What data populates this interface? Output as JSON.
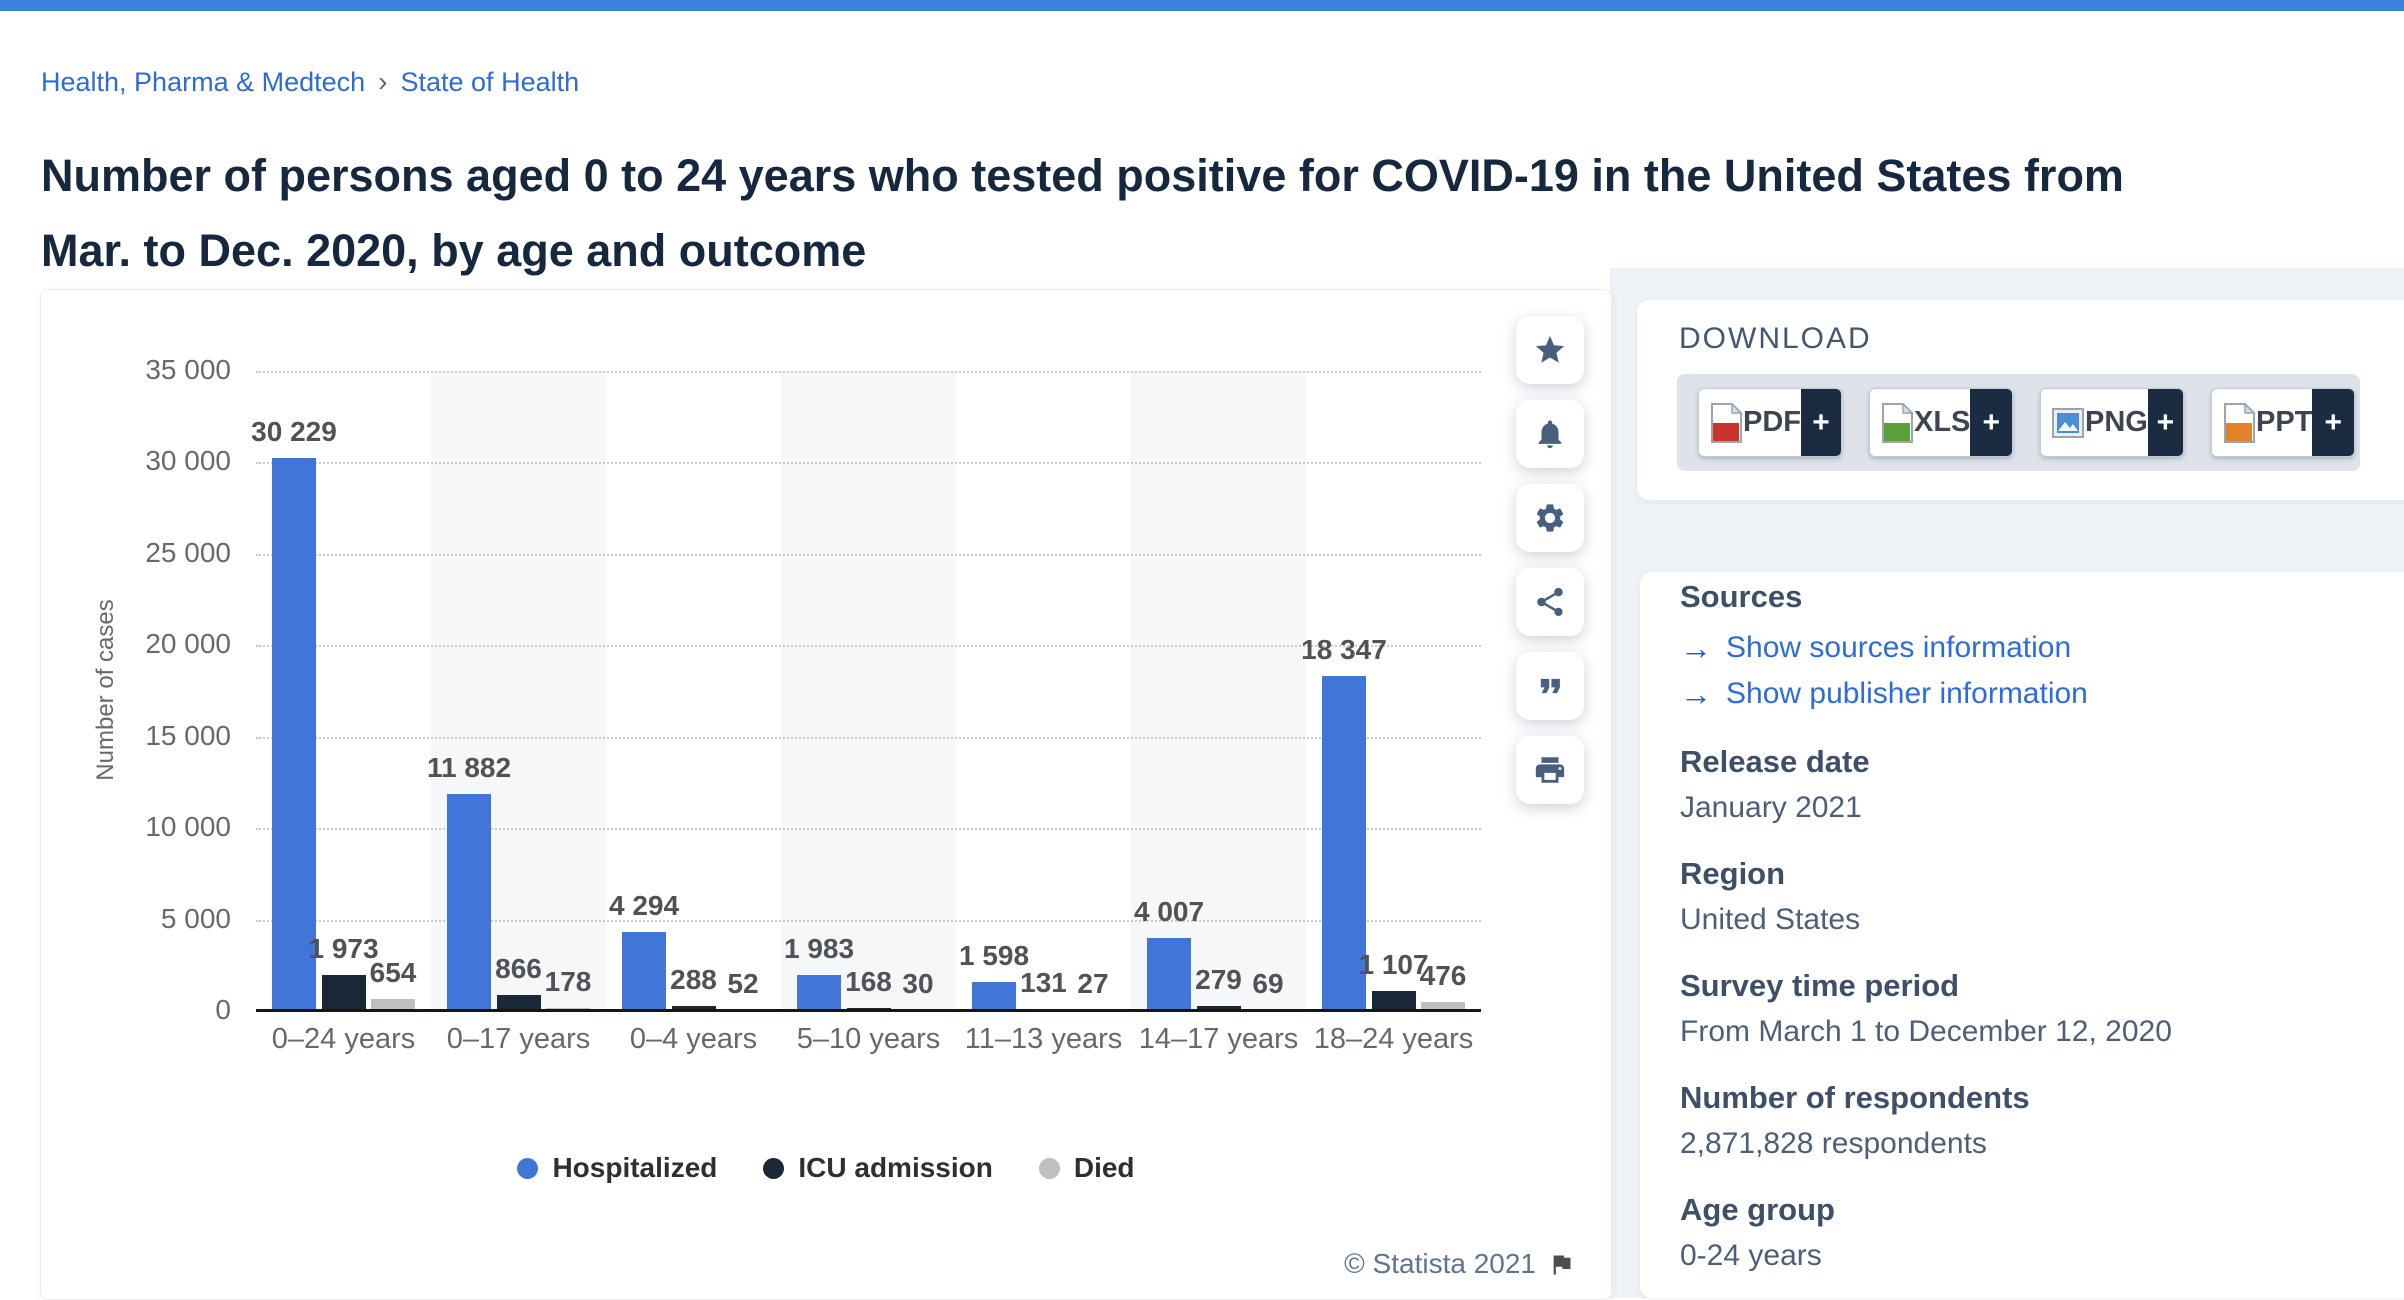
{
  "topbar": {
    "color": "#3a82dc"
  },
  "breadcrumb": {
    "items": [
      "Health, Pharma & Medtech",
      "State of Health"
    ],
    "separator": "›"
  },
  "page_title": "Number of persons aged 0 to 24 years who tested positive for COVID-19 in the United States from Mar. to Dec. 2020, by age and outcome",
  "chart_data": {
    "type": "bar",
    "categories": [
      "0–24 years",
      "0–17 years",
      "0–4 years",
      "5–10 years",
      "11–13 years",
      "14–17 years",
      "18–24 years"
    ],
    "series": [
      {
        "name": "Hospitalized",
        "color": "#4176d8",
        "values": [
          30229,
          11882,
          4294,
          1983,
          1598,
          4007,
          18347
        ]
      },
      {
        "name": "ICU admission",
        "color": "#1a2736",
        "values": [
          1973,
          866,
          288,
          168,
          131,
          279,
          1107
        ]
      },
      {
        "name": "Died",
        "color": "#bfbfbf",
        "values": [
          654,
          178,
          52,
          30,
          27,
          69,
          476
        ]
      }
    ],
    "ylabel": "Number of cases",
    "xlabel": "",
    "ylim": [
      0,
      35000
    ],
    "ytick_step": 5000,
    "grid": "horizontal-dotted",
    "legend_position": "bottom",
    "value_labels": true
  },
  "chart_footer": {
    "copyright": "© Statista 2021"
  },
  "toolbar": {
    "buttons": [
      {
        "name": "favorite-star-icon"
      },
      {
        "name": "notification-bell-icon"
      },
      {
        "name": "settings-gear-icon"
      },
      {
        "name": "share-icon"
      },
      {
        "name": "cite-quote-icon"
      },
      {
        "name": "print-icon"
      }
    ]
  },
  "download": {
    "heading": "DOWNLOAD",
    "plus": "+",
    "buttons": [
      {
        "label": "PDF",
        "kind": "pdf"
      },
      {
        "label": "XLS",
        "kind": "xls"
      },
      {
        "label": "PNG",
        "kind": "png"
      },
      {
        "label": "PPT",
        "kind": "ppt"
      }
    ]
  },
  "sidebar": {
    "sources_heading": "Sources",
    "link_arrow": "→",
    "links": [
      "Show sources information",
      "Show publisher information"
    ],
    "fields": [
      {
        "label": "Release date",
        "value": "January 2021"
      },
      {
        "label": "Region",
        "value": "United States"
      },
      {
        "label": "Survey time period",
        "value": "From March 1 to December 12, 2020"
      },
      {
        "label": "Number of respondents",
        "value": "2,871,828 respondents"
      },
      {
        "label": "Age group",
        "value": "0-24 years"
      }
    ]
  }
}
